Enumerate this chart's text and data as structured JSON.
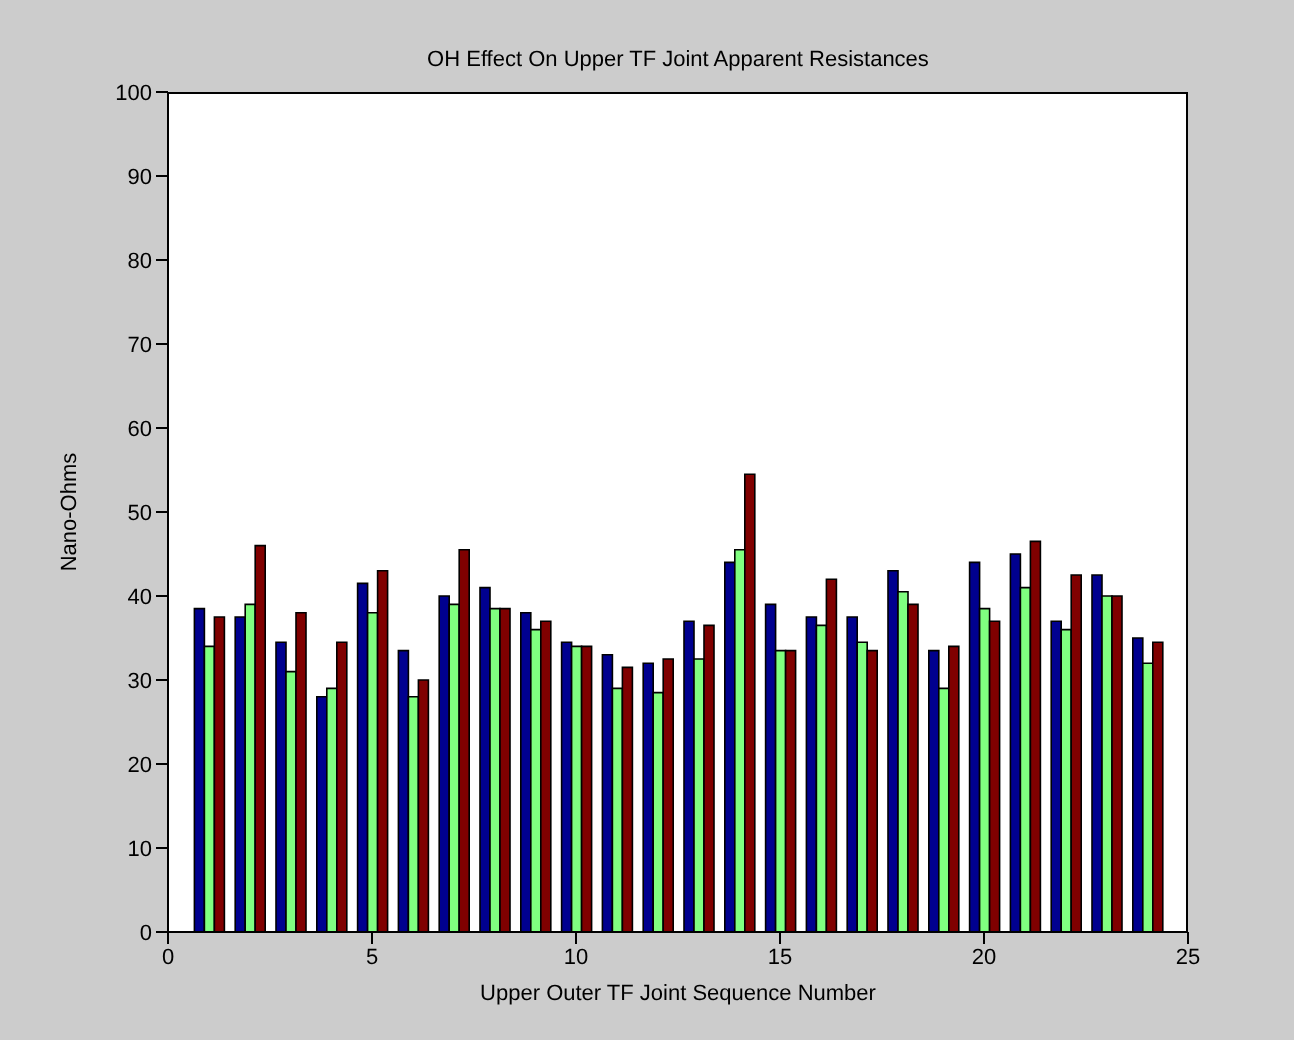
{
  "chart_data": {
    "type": "bar",
    "title": "OH Effect On Upper TF Joint Apparent Resistances",
    "xlabel": "Upper Outer TF Joint Sequence Number",
    "ylabel": "Nano-Ohms",
    "x": [
      1,
      2,
      3,
      4,
      5,
      6,
      7,
      8,
      9,
      10,
      11,
      12,
      13,
      14,
      15,
      16,
      17,
      18,
      19,
      20,
      21,
      22,
      23,
      24
    ],
    "series": [
      {
        "color": "#00008f",
        "values": [
          38.5,
          37.5,
          34.5,
          28,
          41.5,
          33.5,
          40,
          41,
          38,
          34.5,
          33,
          32,
          37,
          44,
          39,
          37.5,
          37.5,
          43,
          33.5,
          44,
          45,
          37,
          42.5,
          35
        ]
      },
      {
        "color": "#80ff80",
        "values": [
          34,
          39,
          31,
          29,
          38,
          28,
          39,
          38.5,
          36,
          34,
          29,
          28.5,
          32.5,
          45.5,
          33.5,
          36.5,
          34.5,
          40.5,
          29,
          38.5,
          41,
          36,
          40,
          32
        ]
      },
      {
        "color": "#800000",
        "values": [
          37.5,
          46,
          38,
          34.5,
          43,
          30,
          45.5,
          38.5,
          37,
          34,
          31.5,
          32.5,
          36.5,
          54.5,
          33.5,
          42,
          33.5,
          39,
          34,
          37,
          46.5,
          42.5,
          40,
          34.5
        ]
      }
    ],
    "xlim": [
      0,
      25
    ],
    "xticks": [
      0,
      5,
      10,
      15,
      20,
      25
    ],
    "ylim": [
      0,
      100
    ],
    "yticks": [
      0,
      10,
      20,
      30,
      40,
      50,
      60,
      70,
      80,
      90,
      100
    ]
  }
}
